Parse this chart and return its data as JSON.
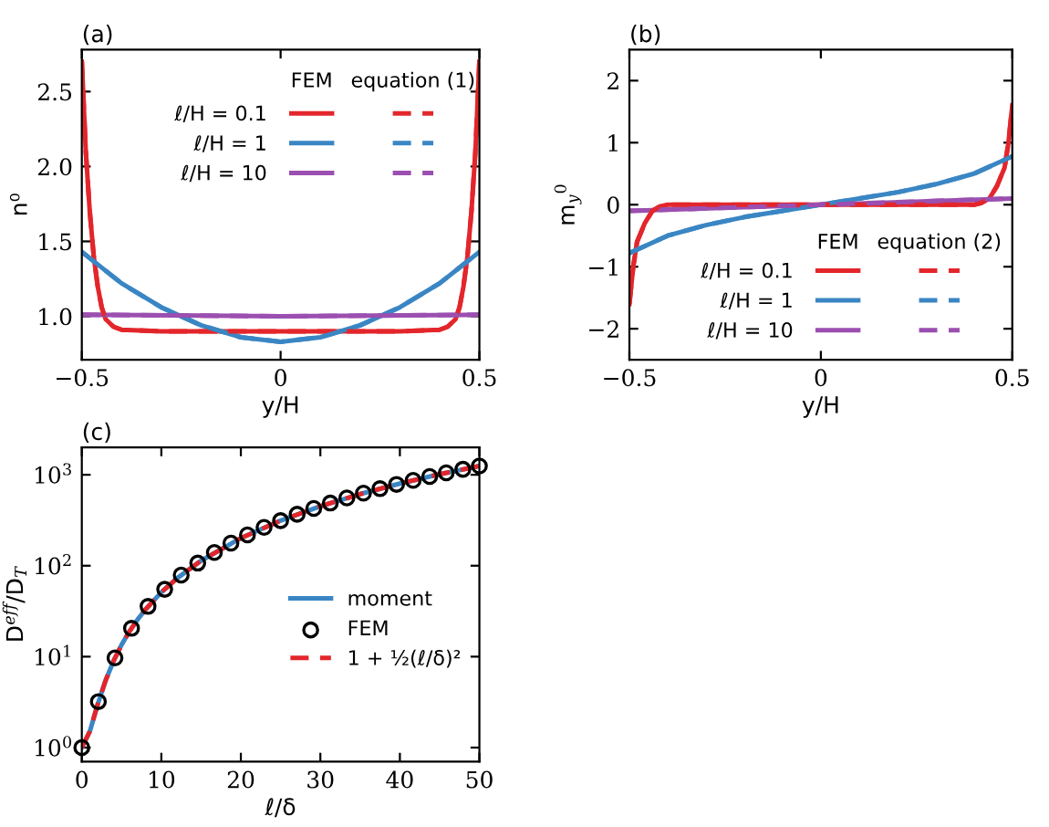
{
  "chart_data": [
    {
      "type": "line",
      "title": "(a)",
      "xlabel": "y/H",
      "ylabel": "n⁰",
      "xlim": [
        -0.5,
        0.5
      ],
      "ylim": [
        0.71,
        2.78
      ],
      "xticks": [
        {
          "value": -0.5,
          "label": "−0.5"
        },
        0,
        0.5
      ],
      "yticks": [
        {
          "value": 1.0,
          "label": "1.0"
        },
        1.5,
        {
          "value": 2.0,
          "label": "2.0"
        },
        2.5
      ],
      "legend": "top right",
      "annotations": [
        "FEM",
        "equation (1)"
      ],
      "series": [
        {
          "name": "ℓ/H = 0.1",
          "color": "#e3262b",
          "line_style": "solid",
          "x": [
            -0.5,
            -0.49,
            -0.48,
            -0.47,
            -0.46,
            -0.45,
            -0.44,
            -0.42,
            -0.4,
            -0.3,
            0,
            0.3,
            0.4,
            0.42,
            0.44,
            0.45,
            0.46,
            0.47,
            0.48,
            0.49,
            0.5
          ],
          "values": [
            2.7,
            2.1,
            1.7,
            1.4,
            1.2,
            1.06,
            0.98,
            0.93,
            0.91,
            0.9,
            0.9,
            0.9,
            0.91,
            0.93,
            0.98,
            1.06,
            1.2,
            1.4,
            1.7,
            2.1,
            2.7
          ]
        },
        {
          "name": "ℓ/H = 1",
          "color": "#3a86c4",
          "line_style": "solid",
          "x": [
            -0.5,
            -0.4,
            -0.3,
            -0.2,
            -0.1,
            0,
            0.1,
            0.2,
            0.3,
            0.4,
            0.5
          ],
          "values": [
            1.43,
            1.22,
            1.06,
            0.94,
            0.86,
            0.83,
            0.86,
            0.94,
            1.06,
            1.22,
            1.43
          ]
        },
        {
          "name": "ℓ/H = 10",
          "color": "#9b4fb0",
          "line_style": "solid",
          "x": [
            -0.5,
            0,
            0.5
          ],
          "values": [
            1.01,
            1.0,
            1.01
          ]
        },
        {
          "color": "#e3262b",
          "line_style": "dashed",
          "x": [
            -0.5,
            -0.49,
            -0.48,
            -0.47,
            -0.46,
            -0.45,
            -0.44,
            -0.42,
            -0.4,
            -0.3,
            0,
            0.3,
            0.4,
            0.42,
            0.44,
            0.45,
            0.46,
            0.47,
            0.48,
            0.49,
            0.5
          ],
          "values": [
            2.7,
            2.1,
            1.7,
            1.4,
            1.2,
            1.06,
            0.98,
            0.93,
            0.91,
            0.9,
            0.9,
            0.9,
            0.91,
            0.93,
            0.98,
            1.06,
            1.2,
            1.4,
            1.7,
            2.1,
            2.7
          ]
        },
        {
          "color": "#3a86c4",
          "line_style": "dashed",
          "x": [
            -0.5,
            -0.4,
            -0.3,
            -0.2,
            -0.1,
            0,
            0.1,
            0.2,
            0.3,
            0.4,
            0.5
          ],
          "values": [
            1.43,
            1.22,
            1.06,
            0.94,
            0.86,
            0.83,
            0.86,
            0.94,
            1.06,
            1.22,
            1.43
          ]
        },
        {
          "color": "#9b4fb0",
          "line_style": "dashed",
          "x": [
            -0.5,
            0,
            0.5
          ],
          "values": [
            1.01,
            1.0,
            1.01
          ]
        }
      ]
    },
    {
      "type": "line",
      "title": "(b)",
      "xlabel": "y/H",
      "ylabel": "m$_{y}$$^{0}$",
      "xlim": [
        -0.5,
        0.5
      ],
      "ylim": [
        -2.5,
        2.5
      ],
      "xticks": [
        {
          "value": -0.5,
          "label": "−0.5"
        },
        0,
        0.5
      ],
      "yticks": [
        {
          "value": -2,
          "label": "−2"
        },
        {
          "value": -1,
          "label": "−1"
        },
        0,
        1,
        2
      ],
      "legend": "bottom right",
      "annotations": [
        "FEM",
        "equation (2)"
      ],
      "series": [
        {
          "name": "ℓ/H = 0.1",
          "color": "#e3262b",
          "line_style": "solid",
          "x": [
            -0.5,
            -0.49,
            -0.48,
            -0.46,
            -0.44,
            -0.42,
            -0.4,
            0,
            0.4,
            0.42,
            0.44,
            0.46,
            0.48,
            0.49,
            0.5
          ],
          "values": [
            -1.6,
            -1.0,
            -0.6,
            -0.3,
            -0.1,
            -0.03,
            0,
            0,
            0,
            0.03,
            0.1,
            0.3,
            0.6,
            1.0,
            1.6
          ]
        },
        {
          "name": "ℓ/H = 1",
          "color": "#3a86c4",
          "line_style": "solid",
          "x": [
            -0.5,
            -0.4,
            -0.3,
            -0.2,
            -0.1,
            0,
            0.1,
            0.2,
            0.3,
            0.4,
            0.5
          ],
          "values": [
            -0.78,
            -0.5,
            -0.33,
            -0.2,
            -0.1,
            0,
            0.1,
            0.2,
            0.33,
            0.5,
            0.78
          ]
        },
        {
          "name": "ℓ/H = 10",
          "color": "#9b4fb0",
          "line_style": "solid",
          "x": [
            -0.5,
            0.5
          ],
          "values": [
            -0.1,
            0.1
          ]
        },
        {
          "color": "#e3262b",
          "line_style": "dashed",
          "x": [
            -0.5,
            -0.49,
            -0.48,
            -0.46,
            -0.44,
            -0.42,
            -0.4,
            0,
            0.4,
            0.42,
            0.44,
            0.46,
            0.48,
            0.49,
            0.5
          ],
          "values": [
            -1.6,
            -1.0,
            -0.6,
            -0.3,
            -0.1,
            -0.03,
            0,
            0,
            0,
            0.03,
            0.1,
            0.3,
            0.6,
            1.0,
            1.6
          ]
        },
        {
          "color": "#3a86c4",
          "line_style": "dashed",
          "x": [
            -0.5,
            -0.4,
            -0.3,
            -0.2,
            -0.1,
            0,
            0.1,
            0.2,
            0.3,
            0.4,
            0.5
          ],
          "values": [
            -0.78,
            -0.5,
            -0.33,
            -0.2,
            -0.1,
            0,
            0.1,
            0.2,
            0.33,
            0.5,
            0.78
          ]
        },
        {
          "color": "#9b4fb0",
          "line_style": "dashed",
          "x": [
            -0.5,
            0.5
          ],
          "values": [
            -0.1,
            0.1
          ]
        }
      ]
    },
    {
      "type": "line",
      "title": "(c)",
      "xlabel": "ℓ/δ",
      "ylabel": "D$^{eff}$/D$_{T}$",
      "log": "y",
      "xlim": [
        0,
        50
      ],
      "ylim": [
        0.7,
        2000
      ],
      "xticks": [
        0,
        10,
        20,
        30,
        40,
        50
      ],
      "yticks": [
        {
          "value": 1,
          "label": "10$^{0}$"
        },
        {
          "value": 10,
          "label": "10$^{1}$"
        },
        {
          "value": 100,
          "label": "10$^{2}$"
        },
        {
          "value": 1000,
          "label": "10$^{3}$"
        }
      ],
      "legend": "right",
      "series": [
        {
          "name": "moment",
          "color": "#3a86c4",
          "line_style": "solid",
          "x": [
            0,
            1,
            2,
            3,
            4,
            5,
            6,
            7,
            8,
            10,
            12,
            15,
            20,
            25,
            30,
            35,
            40,
            45,
            50
          ],
          "values": [
            1,
            1.5,
            3,
            5.5,
            9,
            13.5,
            19,
            25.5,
            33,
            51,
            73,
            113.5,
            201,
            313.5,
            451,
            613.5,
            801,
            1013.5,
            1251
          ]
        },
        {
          "name": "FEM",
          "type": "scatter",
          "marker": "circle",
          "color": "#000000",
          "x": [
            0,
            2.08,
            4.17,
            6.25,
            8.33,
            10.42,
            12.5,
            14.58,
            16.67,
            18.75,
            20.83,
            22.92,
            25,
            27.08,
            29.17,
            31.25,
            33.33,
            35.42,
            37.5,
            39.58,
            41.67,
            43.75,
            45.83,
            47.92,
            50
          ],
          "values": [
            1,
            3.2,
            9.7,
            20.5,
            35.7,
            55,
            79,
            107,
            140,
            177,
            218,
            264,
            313,
            368,
            426,
            489,
            557,
            628,
            704,
            784,
            869,
            958,
            1051,
            1149,
            1251
          ]
        },
        {
          "name": "1 + ½(ℓ/δ)²",
          "color": "#e3262b",
          "line_style": "dashed",
          "x": [
            0,
            1,
            2,
            3,
            4,
            5,
            6,
            7,
            8,
            10,
            12,
            15,
            20,
            25,
            30,
            35,
            40,
            45,
            50
          ],
          "values": [
            1,
            1.5,
            3,
            5.5,
            9,
            13.5,
            19,
            25.5,
            33,
            51,
            73,
            113.5,
            201,
            313.5,
            451,
            613.5,
            801,
            1013.5,
            1251
          ]
        }
      ]
    }
  ]
}
